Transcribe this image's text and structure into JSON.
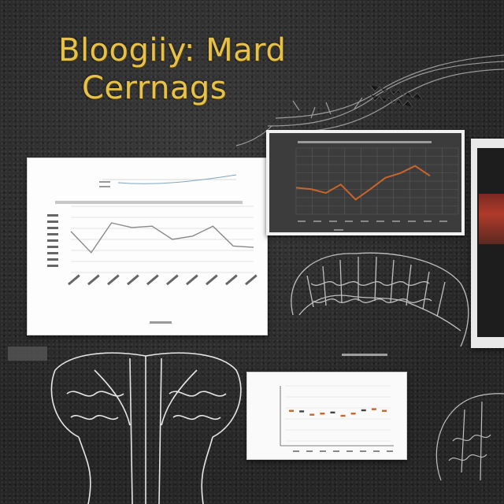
{
  "title": {
    "line1": "Bloogiiy: Mard",
    "line2": "Cerrnags"
  },
  "colors": {
    "title_gold": "#e6c24a",
    "orange_line": "#c8652a",
    "grey_line": "#8a8a8a",
    "background": "#2a2a2a"
  },
  "left_chart": {
    "series": [
      62,
      30,
      75,
      68,
      70,
      50,
      55,
      70,
      40,
      38
    ]
  },
  "dark_chart": {
    "series": [
      40,
      38,
      32,
      45,
      22,
      38,
      55,
      62,
      73,
      58
    ]
  },
  "small_chart": {
    "series": [
      55,
      54,
      48,
      50,
      52,
      46,
      50,
      56,
      58,
      55
    ]
  },
  "icons": {
    "brain_illustrations": [
      "brain-center-icon",
      "brain-bottom-left-icon",
      "brain-bottom-right-icon"
    ],
    "neuron_sketch": "neuron-sketch-icon"
  }
}
